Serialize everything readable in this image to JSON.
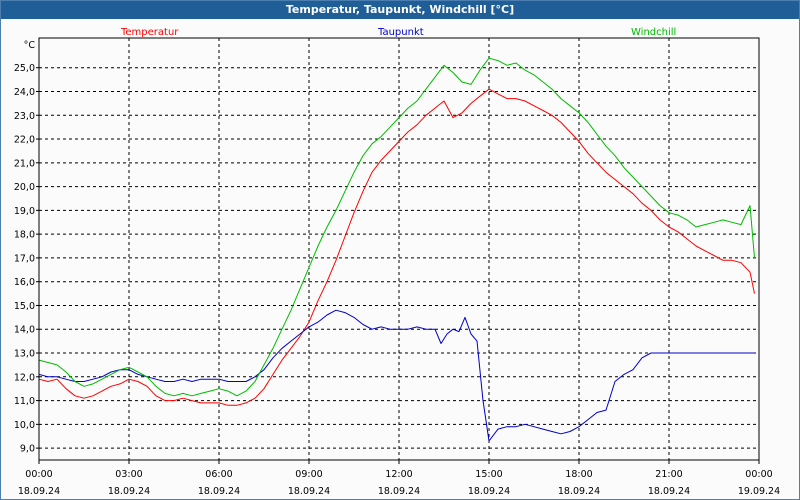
{
  "window": {
    "title": "Temperatur, Taupunkt, Windchill [°C]"
  },
  "colors": {
    "titlebar": "#1f5e96",
    "grid": "#000000",
    "temperatur": "#ff0000",
    "taupunkt": "#0000cc",
    "windchill": "#00bb00"
  },
  "chart_data": {
    "type": "line",
    "title": "Temperatur, Taupunkt, Windchill [°C]",
    "ylabel": "°C",
    "xlabel": "",
    "ylim": [
      8.5,
      26.25
    ],
    "xlim": [
      0,
      24
    ],
    "grid": true,
    "legend_position": "top",
    "y_ticks": [
      "9,0",
      "10,0",
      "11,0",
      "12,0",
      "13,0",
      "14,0",
      "15,0",
      "16,0",
      "17,0",
      "18,0",
      "19,0",
      "20,0",
      "21,0",
      "22,0",
      "23,0",
      "24,0",
      "25,0"
    ],
    "y_tick_values": [
      9,
      10,
      11,
      12,
      13,
      14,
      15,
      16,
      17,
      18,
      19,
      20,
      21,
      22,
      23,
      24,
      25
    ],
    "x_tick_values": [
      0,
      3,
      6,
      9,
      12,
      15,
      18,
      21,
      24
    ],
    "x_ticks_time": [
      "00:00",
      "03:00",
      "06:00",
      "09:00",
      "12:00",
      "15:00",
      "18:00",
      "21:00",
      "00:00"
    ],
    "x_ticks_date": [
      "18.09.24",
      "18.09.24",
      "18.09.24",
      "18.09.24",
      "18.09.24",
      "18.09.24",
      "18.09.24",
      "18.09.24",
      "19.09.24"
    ],
    "series": [
      {
        "name": "Temperatur",
        "color": "#ff0000",
        "x": [
          0,
          0.3,
          0.6,
          0.9,
          1.2,
          1.5,
          1.8,
          2.1,
          2.4,
          2.7,
          3.0,
          3.3,
          3.6,
          3.9,
          4.2,
          4.5,
          4.8,
          5.1,
          5.4,
          5.7,
          6.0,
          6.3,
          6.6,
          6.9,
          7.2,
          7.5,
          7.8,
          8.1,
          8.4,
          8.7,
          9.0,
          9.3,
          9.6,
          9.9,
          10.2,
          10.5,
          10.8,
          11.1,
          11.4,
          11.7,
          12.0,
          12.3,
          12.6,
          12.9,
          13.2,
          13.5,
          13.8,
          14.1,
          14.4,
          14.7,
          15.0,
          15.3,
          15.6,
          15.9,
          16.2,
          16.5,
          16.8,
          17.1,
          17.4,
          17.7,
          18.0,
          18.3,
          18.6,
          18.9,
          19.2,
          19.5,
          19.8,
          20.1,
          20.4,
          20.7,
          21.0,
          21.3,
          21.6,
          21.9,
          22.2,
          22.5,
          22.8,
          23.1,
          23.4,
          23.7,
          23.85
        ],
        "values": [
          11.9,
          11.8,
          11.9,
          11.5,
          11.2,
          11.1,
          11.2,
          11.4,
          11.6,
          11.7,
          11.9,
          11.8,
          11.6,
          11.2,
          11.0,
          11.0,
          11.1,
          11.0,
          10.9,
          10.9,
          10.9,
          10.8,
          10.8,
          10.9,
          11.1,
          11.5,
          12.1,
          12.7,
          13.2,
          13.7,
          14.3,
          15.2,
          16.0,
          16.9,
          17.9,
          18.9,
          19.8,
          20.6,
          21.1,
          21.5,
          21.9,
          22.3,
          22.6,
          23.0,
          23.3,
          23.6,
          22.9,
          23.1,
          23.5,
          23.8,
          24.1,
          23.9,
          23.7,
          23.7,
          23.6,
          23.4,
          23.2,
          23.0,
          22.7,
          22.3,
          21.9,
          21.4,
          21.0,
          20.6,
          20.3,
          20.0,
          19.7,
          19.3,
          19.0,
          18.6,
          18.3,
          18.1,
          17.8,
          17.5,
          17.3,
          17.1,
          16.9,
          16.9,
          16.8,
          16.4,
          15.5
        ]
      },
      {
        "name": "Taupunkt",
        "color": "#0000cc",
        "x": [
          0,
          0.3,
          0.6,
          0.9,
          1.2,
          1.5,
          1.8,
          2.1,
          2.4,
          2.7,
          3.0,
          3.3,
          3.6,
          3.9,
          4.2,
          4.5,
          4.8,
          5.1,
          5.4,
          5.7,
          6.0,
          6.3,
          6.6,
          6.9,
          7.2,
          7.5,
          7.8,
          8.1,
          8.4,
          8.7,
          9.0,
          9.3,
          9.6,
          9.9,
          10.2,
          10.5,
          10.8,
          11.1,
          11.4,
          11.7,
          12.0,
          12.3,
          12.6,
          12.9,
          13.2,
          13.4,
          13.6,
          13.8,
          14.0,
          14.2,
          14.4,
          14.6,
          14.8,
          15.0,
          15.3,
          15.6,
          15.9,
          16.2,
          16.5,
          16.8,
          17.1,
          17.4,
          17.7,
          18.0,
          18.3,
          18.6,
          18.9,
          19.2,
          19.5,
          19.8,
          20.1,
          20.4,
          20.7,
          21.0,
          21.3,
          21.6,
          21.9,
          22.2,
          22.5,
          22.8,
          23.1,
          23.4,
          23.7,
          23.85
        ],
        "values": [
          12.1,
          12.0,
          12.0,
          11.9,
          11.8,
          11.8,
          11.9,
          12.0,
          12.2,
          12.3,
          12.3,
          12.1,
          12.0,
          11.9,
          11.8,
          11.8,
          11.9,
          11.8,
          11.9,
          11.9,
          11.9,
          11.8,
          11.8,
          11.8,
          12.0,
          12.3,
          12.8,
          13.2,
          13.5,
          13.8,
          14.1,
          14.3,
          14.6,
          14.8,
          14.7,
          14.5,
          14.2,
          14.0,
          14.1,
          14.0,
          14.0,
          14.0,
          14.1,
          14.0,
          14.0,
          13.4,
          13.8,
          14.0,
          13.9,
          14.5,
          13.8,
          13.5,
          11.0,
          9.3,
          9.8,
          9.9,
          9.9,
          10.0,
          9.9,
          9.8,
          9.7,
          9.6,
          9.7,
          9.9,
          10.2,
          10.5,
          10.6,
          11.8,
          12.1,
          12.3,
          12.8,
          13.0,
          13.0,
          13.0,
          13.0,
          13.0,
          13.0,
          13.0,
          13.0,
          13.0,
          13.0,
          13.0,
          13.0,
          13.0
        ]
      },
      {
        "name": "Windchill",
        "color": "#00bb00",
        "x": [
          0,
          0.3,
          0.6,
          0.9,
          1.2,
          1.5,
          1.8,
          2.1,
          2.4,
          2.7,
          3.0,
          3.3,
          3.6,
          3.9,
          4.2,
          4.5,
          4.8,
          5.1,
          5.4,
          5.7,
          6.0,
          6.3,
          6.6,
          6.9,
          7.2,
          7.5,
          7.8,
          8.1,
          8.4,
          8.7,
          9.0,
          9.3,
          9.6,
          9.9,
          10.2,
          10.5,
          10.8,
          11.1,
          11.4,
          11.7,
          12.0,
          12.3,
          12.6,
          12.9,
          13.2,
          13.5,
          13.8,
          14.1,
          14.4,
          14.7,
          15.0,
          15.3,
          15.6,
          15.9,
          16.2,
          16.5,
          16.8,
          17.1,
          17.4,
          17.7,
          18.0,
          18.3,
          18.6,
          18.9,
          19.2,
          19.5,
          19.8,
          20.1,
          20.4,
          20.7,
          21.0,
          21.3,
          21.6,
          21.9,
          22.2,
          22.5,
          22.8,
          23.1,
          23.4,
          23.7,
          23.85
        ],
        "values": [
          12.7,
          12.6,
          12.5,
          12.2,
          11.8,
          11.6,
          11.7,
          11.9,
          12.1,
          12.3,
          12.4,
          12.2,
          12.0,
          11.6,
          11.3,
          11.2,
          11.3,
          11.2,
          11.3,
          11.4,
          11.5,
          11.4,
          11.2,
          11.4,
          11.8,
          12.5,
          13.2,
          14.0,
          14.8,
          15.7,
          16.6,
          17.5,
          18.3,
          19.0,
          19.8,
          20.6,
          21.3,
          21.8,
          22.1,
          22.5,
          22.9,
          23.3,
          23.6,
          24.1,
          24.6,
          25.1,
          24.8,
          24.4,
          24.3,
          24.9,
          25.4,
          25.3,
          25.1,
          25.2,
          24.9,
          24.7,
          24.4,
          24.1,
          23.7,
          23.4,
          23.1,
          22.7,
          22.2,
          21.7,
          21.3,
          20.8,
          20.4,
          20.0,
          19.6,
          19.2,
          18.9,
          18.8,
          18.6,
          18.3,
          18.4,
          18.5,
          18.6,
          18.5,
          18.4,
          19.2,
          17.0
        ]
      }
    ]
  }
}
